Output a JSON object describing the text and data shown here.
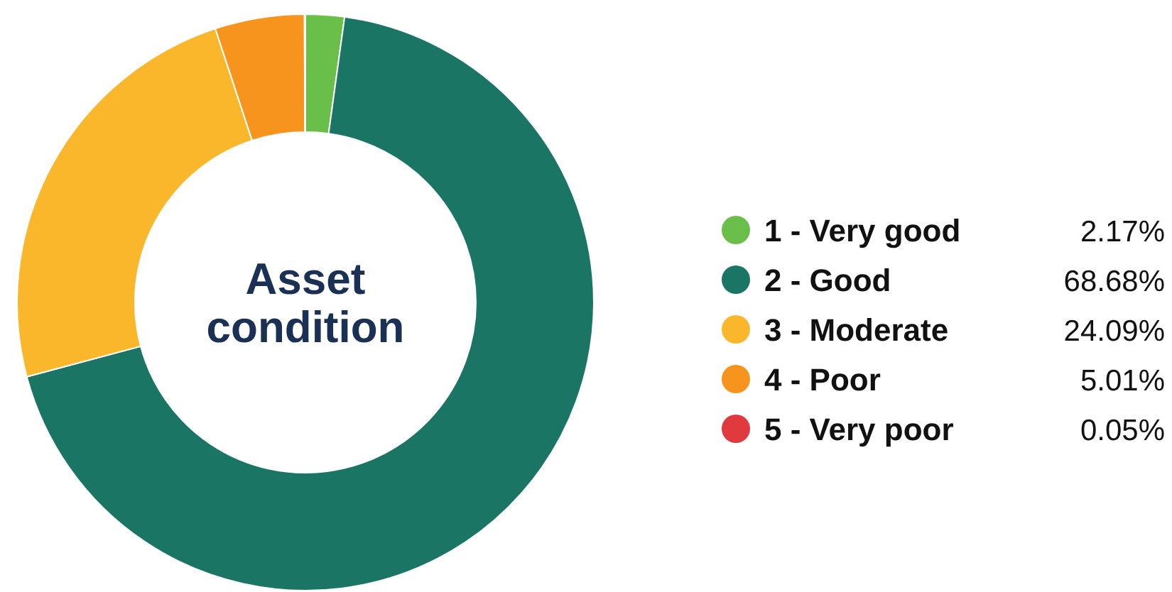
{
  "chart_data": {
    "type": "donut",
    "title": "Asset condition",
    "categories": [
      "1 - Very good",
      "2 - Good",
      "3 - Moderate",
      "4 - Poor",
      "5 - Very poor"
    ],
    "values": [
      2.17,
      68.68,
      24.09,
      5.01,
      0.05
    ],
    "value_labels": [
      "2.17%",
      "68.68%",
      "24.09%",
      "5.01%",
      "0.05%"
    ],
    "colors": [
      "#6abf4b",
      "#1b7565",
      "#fbb72c",
      "#f7941d",
      "#e0393e"
    ],
    "legend": "right"
  }
}
